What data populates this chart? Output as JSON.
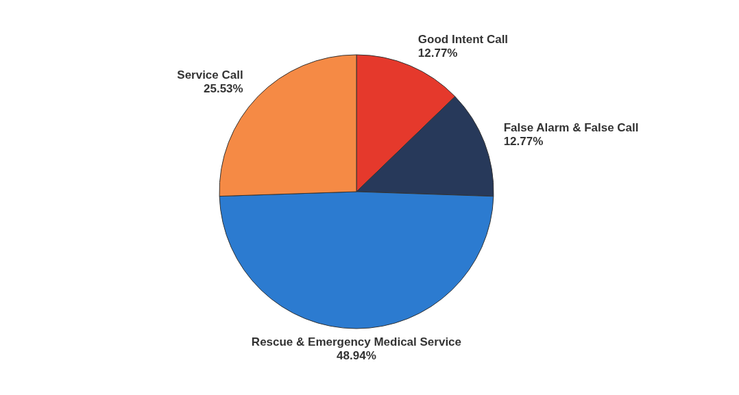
{
  "chart_data": {
    "type": "pie",
    "categories": [
      "Good Intent Call",
      "False Alarm & False Call",
      "Rescue & Emergency Medical Service",
      "Service Call"
    ],
    "values": [
      12.77,
      12.77,
      48.94,
      25.53
    ],
    "value_labels": [
      "12.77%",
      "12.77%",
      "48.94%",
      "25.53%"
    ],
    "colors": [
      "#e5392c",
      "#27395a",
      "#2c7bd0",
      "#f58a45"
    ]
  }
}
